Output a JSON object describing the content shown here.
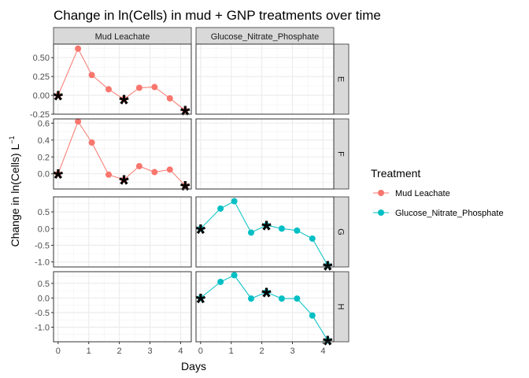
{
  "chart_data": {
    "type": "line",
    "title": "Change in ln(Cells) in mud + GNP treatments over time",
    "xlabel": "Days",
    "ylabel_main": "Change in ln(Cells) L",
    "ylabel_sup": "−1",
    "column_strips": [
      "Mud Leachate",
      "Glucose_Nitrate_Phosphate"
    ],
    "row_strips": [
      "E",
      "F",
      "G",
      "H"
    ],
    "x_ticks": [
      "0",
      "1",
      "2",
      "3",
      "4"
    ],
    "xlim": [
      -0.15,
      4.35
    ],
    "legend": {
      "title": "Treatment",
      "position": "right",
      "entries": [
        {
          "label": "Mud Leachate",
          "color": "#F8766D"
        },
        {
          "label": "Glucose_Nitrate_Phosphate",
          "color": "#00BFC4"
        }
      ]
    },
    "grid": true,
    "marker_symbol": "*",
    "rows": [
      {
        "strip": "E",
        "ylim": [
          -0.25,
          0.68
        ],
        "y_ticks": [
          -0.25,
          0,
          0.25,
          0.5
        ],
        "y_tick_labels": [
          "-0.25",
          "0.00",
          "0.25",
          "0.50"
        ],
        "series": [
          {
            "name": "Mud Leachate",
            "column": 0,
            "x": [
              0,
              0.65,
              1.1,
              1.65,
              2.15,
              2.65,
              3.15,
              3.65,
              4.15
            ],
            "y": [
              0.0,
              0.62,
              0.27,
              0.08,
              -0.05,
              0.1,
              0.11,
              -0.04,
              -0.2
            ],
            "markers": [
              0,
              2.15,
              4.15
            ]
          }
        ]
      },
      {
        "strip": "F",
        "ylim": [
          -0.18,
          0.65
        ],
        "y_ticks": [
          0,
          0.2,
          0.4,
          0.6
        ],
        "y_tick_labels": [
          "0.0",
          "0.2",
          "0.4",
          "0.6"
        ],
        "series": [
          {
            "name": "Mud Leachate",
            "column": 0,
            "x": [
              0,
              0.65,
              1.1,
              1.65,
              2.15,
              2.65,
              3.15,
              3.65,
              4.15
            ],
            "y": [
              0.0,
              0.62,
              0.37,
              -0.01,
              -0.07,
              0.09,
              0.02,
              0.05,
              -0.14
            ],
            "markers": [
              0,
              2.15,
              4.15
            ]
          }
        ]
      },
      {
        "strip": "G",
        "ylim": [
          -1.15,
          0.95
        ],
        "y_ticks": [
          -1,
          -0.5,
          0,
          0.5
        ],
        "y_tick_labels": [
          "-1.0",
          "-0.5",
          "0.0",
          "0.5"
        ],
        "series": [
          {
            "name": "Glucose_Nitrate_Phosphate",
            "column": 1,
            "x": [
              0,
              0.65,
              1.1,
              1.65,
              2.15,
              2.65,
              3.15,
              3.65,
              4.15
            ],
            "y": [
              0.0,
              0.6,
              0.82,
              -0.12,
              0.1,
              0.0,
              -0.06,
              -0.3,
              -1.1
            ],
            "markers": [
              0,
              2.15,
              4.15
            ]
          }
        ]
      },
      {
        "strip": "H",
        "ylim": [
          -1.5,
          0.9
        ],
        "y_ticks": [
          -1,
          -0.5,
          0,
          0.5
        ],
        "y_tick_labels": [
          "-1.0",
          "-0.5",
          "0.0",
          "0.5"
        ],
        "series": [
          {
            "name": "Glucose_Nitrate_Phosphate",
            "column": 1,
            "x": [
              0,
              0.65,
              1.1,
              1.65,
              2.15,
              2.65,
              3.15,
              3.65,
              4.15
            ],
            "y": [
              0.0,
              0.55,
              0.78,
              -0.02,
              0.2,
              -0.02,
              -0.02,
              -0.6,
              -1.45
            ],
            "markers": [
              0,
              2.15,
              4.15
            ]
          }
        ]
      }
    ]
  }
}
